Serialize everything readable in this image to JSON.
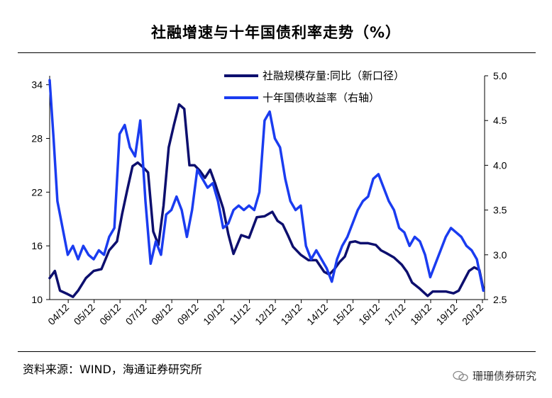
{
  "title": "社融增速与十年国债利率走势（%）",
  "source": "资料来源：WIND，海通证券研究所",
  "watermark": "珊珊债券研究",
  "colors": {
    "series1": "#0d0f6e",
    "series2": "#1a3cf0"
  },
  "chart_data": {
    "type": "line",
    "x_tick_labels": [
      "04/12",
      "05/12",
      "06/12",
      "07/12",
      "08/12",
      "09/12",
      "10/12",
      "11/12",
      "12/12",
      "13/12",
      "14/12",
      "15/12",
      "16/12",
      "17/12",
      "18/12",
      "19/12",
      "20/12"
    ],
    "x_range": [
      2004.2,
      2021.0
    ],
    "y_left": {
      "ticks": [
        10,
        16,
        22,
        28,
        34
      ],
      "ylim": [
        10,
        35
      ]
    },
    "y_right": {
      "ticks": [
        "2.5",
        "3.0",
        "3.5",
        "4.0",
        "4.5",
        "5.0"
      ],
      "ylim": [
        2.5,
        5.0
      ]
    },
    "series": [
      {
        "name": "社融规模存量:同比（新口径）",
        "axis": "left",
        "x": [
          2004.2,
          2004.4,
          2004.6,
          2004.9,
          2005.1,
          2005.3,
          2005.6,
          2005.9,
          2006.2,
          2006.5,
          2006.8,
          2007.0,
          2007.2,
          2007.4,
          2007.6,
          2007.8,
          2008.0,
          2008.2,
          2008.4,
          2008.6,
          2008.8,
          2009.0,
          2009.2,
          2009.4,
          2009.6,
          2009.8,
          2010.0,
          2010.2,
          2010.4,
          2010.6,
          2010.9,
          2011.1,
          2011.3,
          2011.6,
          2011.9,
          2012.2,
          2012.5,
          2012.8,
          2013.0,
          2013.2,
          2013.4,
          2013.6,
          2013.9,
          2014.2,
          2014.5,
          2014.8,
          2015.0,
          2015.2,
          2015.4,
          2015.6,
          2015.8,
          2016.0,
          2016.2,
          2016.5,
          2016.8,
          2017.0,
          2017.2,
          2017.5,
          2017.8,
          2018.0,
          2018.2,
          2018.5,
          2018.8,
          2019.0,
          2019.2,
          2019.5,
          2019.8,
          2020.0,
          2020.2,
          2020.4,
          2020.6,
          2020.8,
          2020.95
        ],
        "y": [
          12.4,
          13.2,
          11.0,
          10.6,
          10.3,
          11.0,
          12.4,
          13.2,
          13.4,
          15.5,
          16.5,
          19.6,
          22.3,
          24.9,
          25.3,
          24.8,
          24.2,
          17.6,
          16.1,
          20.5,
          27.0,
          29.5,
          31.8,
          31.3,
          25.0,
          25.0,
          24.4,
          23.6,
          24.5,
          22.9,
          20.2,
          17.3,
          15.1,
          17.2,
          16.9,
          19.2,
          19.3,
          19.8,
          18.8,
          18.4,
          17.2,
          15.9,
          15.0,
          14.4,
          14.4,
          13.1,
          12.8,
          13.4,
          14.2,
          14.8,
          16.4,
          16.5,
          16.3,
          16.3,
          16.1,
          15.5,
          15.2,
          14.7,
          13.9,
          13.1,
          11.9,
          11.2,
          10.4,
          10.9,
          10.9,
          10.9,
          10.7,
          11.0,
          12.1,
          13.2,
          13.6,
          13.3,
          11.2
        ]
      },
      {
        "name": "十年国债收益率（右轴）",
        "axis": "right",
        "x": [
          2004.2,
          2004.35,
          2004.5,
          2004.7,
          2004.9,
          2005.1,
          2005.3,
          2005.5,
          2005.7,
          2005.9,
          2006.1,
          2006.3,
          2006.5,
          2006.7,
          2006.9,
          2007.1,
          2007.3,
          2007.5,
          2007.7,
          2007.9,
          2008.1,
          2008.3,
          2008.5,
          2008.7,
          2008.9,
          2009.1,
          2009.3,
          2009.5,
          2009.7,
          2009.9,
          2010.1,
          2010.3,
          2010.5,
          2010.7,
          2010.9,
          2011.1,
          2011.3,
          2011.5,
          2011.7,
          2011.9,
          2012.1,
          2012.3,
          2012.5,
          2012.7,
          2012.9,
          2013.1,
          2013.3,
          2013.5,
          2013.7,
          2013.9,
          2014.1,
          2014.3,
          2014.5,
          2014.7,
          2014.9,
          2015.1,
          2015.3,
          2015.5,
          2015.7,
          2015.9,
          2016.1,
          2016.3,
          2016.5,
          2016.7,
          2016.9,
          2017.1,
          2017.3,
          2017.5,
          2017.7,
          2017.9,
          2018.1,
          2018.3,
          2018.5,
          2018.7,
          2018.9,
          2019.1,
          2019.3,
          2019.5,
          2019.7,
          2019.9,
          2020.1,
          2020.3,
          2020.5,
          2020.7,
          2020.95
        ],
        "y": [
          4.95,
          4.3,
          3.6,
          3.3,
          3.0,
          3.1,
          2.95,
          3.1,
          3.0,
          2.95,
          3.05,
          3.0,
          3.2,
          3.3,
          4.35,
          4.45,
          4.2,
          4.1,
          4.5,
          3.6,
          2.9,
          3.15,
          3.0,
          3.45,
          3.5,
          3.65,
          3.5,
          3.2,
          3.5,
          3.95,
          3.85,
          3.75,
          3.8,
          3.6,
          3.3,
          3.35,
          3.5,
          3.55,
          3.5,
          3.55,
          3.5,
          3.7,
          4.5,
          4.6,
          4.3,
          4.2,
          3.85,
          3.6,
          3.5,
          3.55,
          3.1,
          2.95,
          3.05,
          2.95,
          2.85,
          2.7,
          2.95,
          3.1,
          3.2,
          3.35,
          3.5,
          3.6,
          3.65,
          3.85,
          3.9,
          3.75,
          3.6,
          3.5,
          3.3,
          3.25,
          3.1,
          3.2,
          3.15,
          3.0,
          2.75,
          2.9,
          3.05,
          3.2,
          3.3,
          3.25,
          3.2,
          3.1,
          3.05,
          2.95,
          2.6
        ]
      }
    ],
    "legend_position": "top-center"
  }
}
